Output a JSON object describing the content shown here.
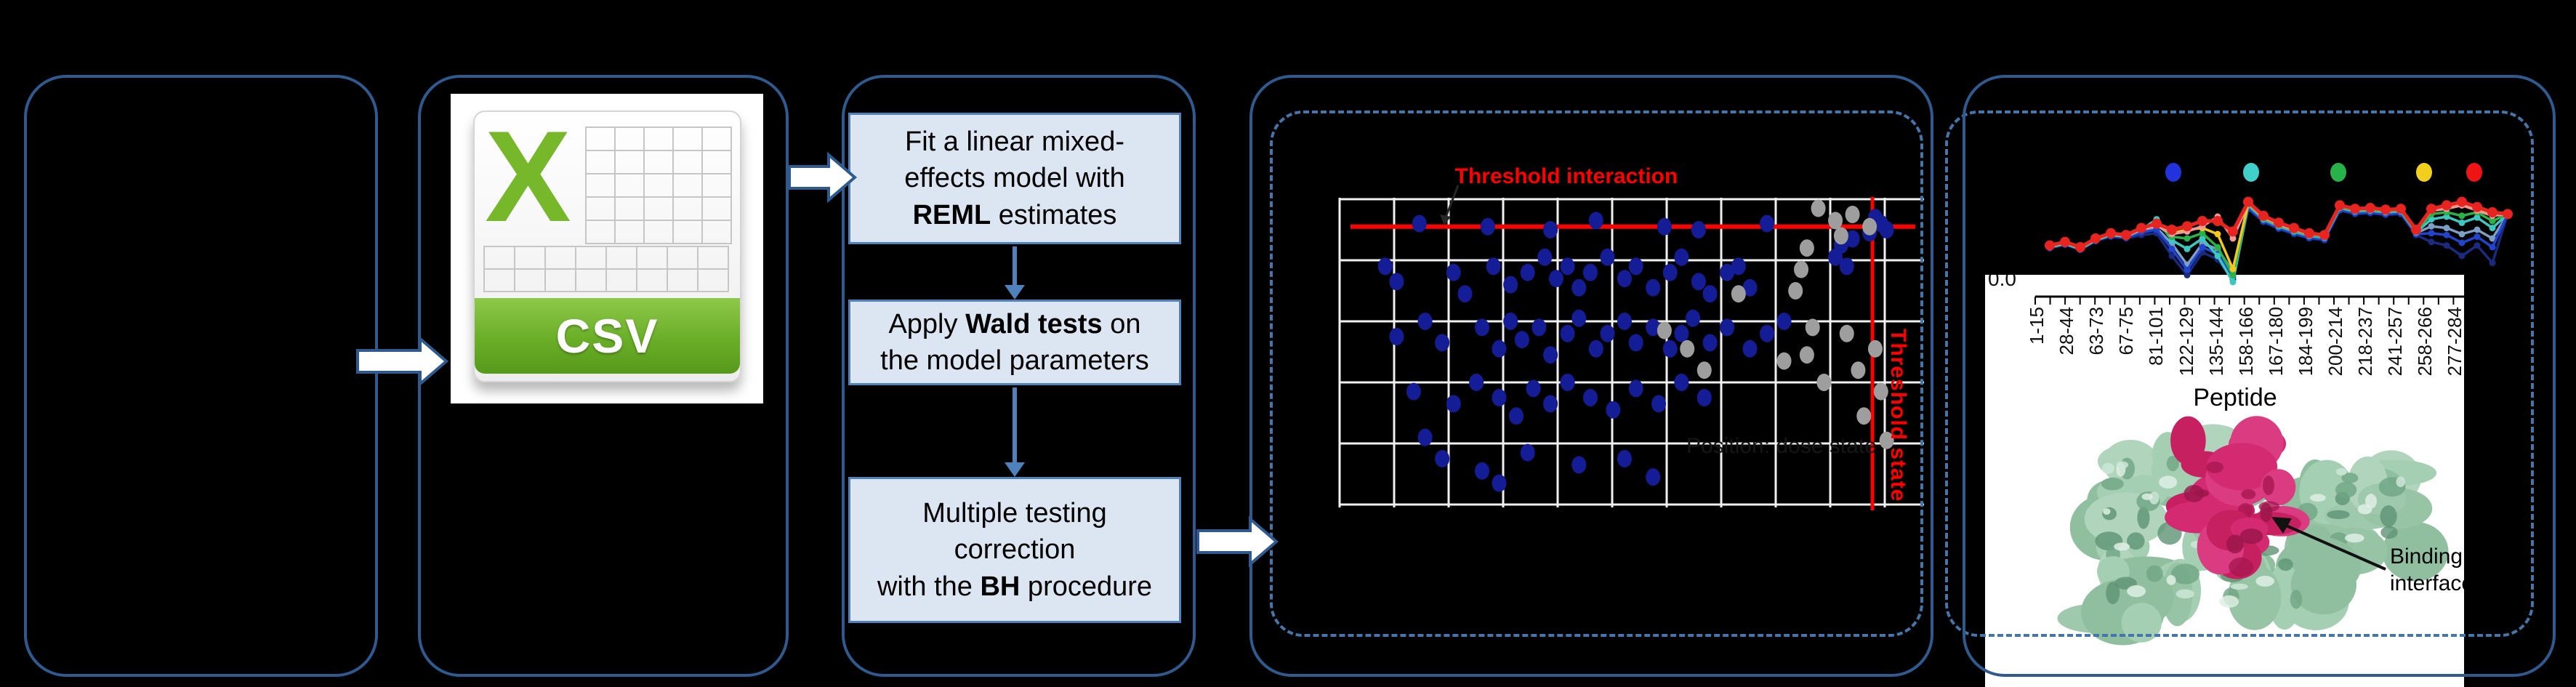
{
  "colors": {
    "background": "#000000",
    "panel_border": "#2e5a8f",
    "dashed_border": "#4576ab",
    "step_fill": "#dce6f2",
    "step_border": "#4f81bd",
    "threshold_red": "#ff0000",
    "scatter_blue": "#141c96",
    "scatter_gray": "#9e9e9e",
    "grid_white": "#f0f0f0",
    "csv_green": "#76b82a",
    "protein_green": [
      "#9fc9ad",
      "#8fbf9f",
      "#b0d5bc",
      "#a5cfb3",
      "#97c4a5"
    ],
    "protein_green_dark": [
      "#6fa583",
      "#5e9374"
    ],
    "protein_green_light": [
      "#cde6d6",
      "#def0e4"
    ],
    "protein_magenta": [
      "#d42a72",
      "#c72061",
      "#db3b80"
    ],
    "protein_magenta_dark": [
      "#a81850",
      "#97154a"
    ]
  },
  "panel2": {
    "excel_letter": "X",
    "badge": "CSV"
  },
  "panel3": {
    "steps": [
      {
        "name": "fit-model",
        "lines": [
          [
            {
              "t": "Fit a linear mixed-"
            }
          ],
          [
            {
              "t": "effects model with"
            }
          ],
          [
            {
              "t": "REML",
              "b": true
            },
            {
              "t": " estimates"
            }
          ]
        ]
      },
      {
        "name": "wald-tests",
        "lines": [
          [
            {
              "t": "Apply "
            },
            {
              "t": "Wald tests",
              "b": true
            },
            {
              "t": " on"
            }
          ],
          [
            {
              "t": "the model parameters"
            }
          ]
        ]
      },
      {
        "name": "multiple-testing",
        "lines": [
          [
            {
              "t": "Multiple testing"
            }
          ],
          [
            {
              "t": "correction"
            }
          ],
          [
            {
              "t": "with the "
            },
            {
              "t": "BH",
              "b": true
            },
            {
              "t": " procedure"
            }
          ]
        ]
      }
    ]
  },
  "panel4": {
    "title": "Threshold interaction",
    "vline_label": "Threshold state",
    "faint_xlabel": "Position: dose state"
  },
  "panel5": {
    "y_tick": "0.0",
    "x_title": "Peptide",
    "annotation_lines": [
      "Binding",
      "interface"
    ]
  },
  "chart_data": [
    {
      "id": "threshold-scatter",
      "type": "scatter",
      "title": "Threshold interaction",
      "grid": {
        "cols": 11,
        "rows": 6,
        "on": true
      },
      "thresholds": {
        "interaction_y_frac": 0.09,
        "state_x_frac": 0.935,
        "color": "#ff0000"
      },
      "series": [
        {
          "name": "significant-interaction",
          "color": "#141c96",
          "points": [
            [
              14,
              8
            ],
            [
              26,
              9
            ],
            [
              37,
              10
            ],
            [
              45,
              7
            ],
            [
              57,
              9
            ],
            [
              63,
              10
            ],
            [
              75,
              8
            ],
            [
              94,
              6
            ],
            [
              95,
              8
            ],
            [
              96,
              10
            ],
            [
              93,
              11
            ],
            [
              90,
              13
            ],
            [
              88,
              15
            ],
            [
              87,
              19
            ],
            [
              89,
              22
            ],
            [
              8,
              22
            ],
            [
              10,
              27
            ],
            [
              20,
              24
            ],
            [
              22,
              31
            ],
            [
              27,
              22
            ],
            [
              30,
              28
            ],
            [
              33,
              24
            ],
            [
              36,
              19
            ],
            [
              38,
              26
            ],
            [
              40,
              22
            ],
            [
              42,
              29
            ],
            [
              44,
              24
            ],
            [
              47,
              19
            ],
            [
              50,
              26
            ],
            [
              52,
              22
            ],
            [
              55,
              29
            ],
            [
              58,
              24
            ],
            [
              60,
              19
            ],
            [
              63,
              27
            ],
            [
              65,
              31
            ],
            [
              68,
              24
            ],
            [
              70,
              22
            ],
            [
              72,
              29
            ],
            [
              10,
              45
            ],
            [
              15,
              40
            ],
            [
              18,
              47
            ],
            [
              25,
              42
            ],
            [
              28,
              49
            ],
            [
              30,
              40
            ],
            [
              32,
              46
            ],
            [
              35,
              42
            ],
            [
              37,
              51
            ],
            [
              40,
              44
            ],
            [
              42,
              39
            ],
            [
              45,
              49
            ],
            [
              47,
              44
            ],
            [
              50,
              40
            ],
            [
              52,
              47
            ],
            [
              55,
              42
            ],
            [
              58,
              49
            ],
            [
              60,
              44
            ],
            [
              62,
              39
            ],
            [
              65,
              47
            ],
            [
              68,
              42
            ],
            [
              72,
              49
            ],
            [
              75,
              44
            ],
            [
              78,
              40
            ],
            [
              13,
              63
            ],
            [
              20,
              67
            ],
            [
              24,
              60
            ],
            [
              28,
              65
            ],
            [
              31,
              71
            ],
            [
              34,
              62
            ],
            [
              37,
              67
            ],
            [
              40,
              60
            ],
            [
              44,
              65
            ],
            [
              48,
              69
            ],
            [
              52,
              62
            ],
            [
              56,
              67
            ],
            [
              60,
              60
            ],
            [
              64,
              65
            ],
            [
              18,
              85
            ],
            [
              25,
              89
            ],
            [
              33,
              83
            ],
            [
              42,
              87
            ],
            [
              50,
              85
            ],
            [
              55,
              91
            ],
            [
              28,
              93
            ],
            [
              15,
              78
            ]
          ]
        },
        {
          "name": "not-significant",
          "color": "#9e9e9e",
          "points": [
            [
              84,
              3
            ],
            [
              87,
              7
            ],
            [
              90,
              5
            ],
            [
              93,
              9
            ],
            [
              88,
              12
            ],
            [
              82,
              16
            ],
            [
              81,
              23
            ],
            [
              80,
              30
            ],
            [
              83,
              42
            ],
            [
              82,
              51
            ],
            [
              89,
              44
            ],
            [
              94,
              49
            ],
            [
              91,
              56
            ],
            [
              95,
              63
            ],
            [
              92,
              71
            ],
            [
              96,
              79
            ],
            [
              85,
              60
            ],
            [
              57,
              43
            ],
            [
              61,
              49
            ],
            [
              64,
              56
            ],
            [
              78,
              53
            ],
            [
              70,
              31
            ]
          ]
        }
      ]
    },
    {
      "id": "peptide-profiles",
      "type": "line",
      "x_points": 31,
      "legend": {
        "colors": [
          "#2233dd",
          "#3fd0cc",
          "#27b34a",
          "#f2cf1d",
          "#ee1414"
        ],
        "position": "top"
      },
      "series": [
        {
          "name": "steel",
          "color": "#7d9fc4",
          "values": [
            60,
            56,
            62,
            52,
            46,
            48,
            42,
            38,
            56,
            80,
            56,
            62,
            88,
            14,
            29,
            37,
            43,
            48,
            50,
            16,
            20,
            19,
            21,
            20,
            44,
            36,
            38,
            45,
            40,
            50,
            22
          ]
        },
        {
          "name": "navy",
          "color": "#1a2a80",
          "values": [
            61,
            57,
            63,
            53,
            48,
            50,
            46,
            44,
            70,
            92,
            66,
            74,
            97,
            16,
            31,
            39,
            45,
            50,
            52,
            18,
            22,
            21,
            23,
            22,
            46,
            54,
            58,
            70,
            58,
            78,
            22
          ]
        },
        {
          "name": "blue",
          "color": "#2144cf",
          "values": [
            61,
            57,
            63,
            53,
            47,
            49,
            43,
            40,
            62,
            86,
            60,
            68,
            94,
            15,
            30,
            38,
            44,
            49,
            51,
            17,
            21,
            20,
            22,
            21,
            45,
            44,
            46,
            55,
            48,
            60,
            22
          ]
        },
        {
          "name": "teal",
          "color": "#3cc8c0",
          "values": [
            60,
            56,
            62,
            52,
            46,
            48,
            40,
            28,
            52,
            62,
            50,
            70,
            100,
            12,
            28,
            36,
            42,
            47,
            49,
            15,
            19,
            18,
            20,
            19,
            43,
            28,
            25,
            32,
            26,
            38,
            22
          ]
        },
        {
          "name": "green",
          "color": "#2ab148",
          "values": [
            59,
            55,
            61,
            51,
            45,
            47,
            39,
            34,
            48,
            50,
            44,
            60,
            92,
            11,
            27,
            35,
            41,
            46,
            48,
            14,
            18,
            17,
            19,
            18,
            42,
            22,
            20,
            24,
            20,
            30,
            22
          ]
        },
        {
          "name": "gold",
          "color": "#f4c71c",
          "values": [
            59,
            55,
            61,
            51,
            45,
            47,
            39,
            34,
            44,
            40,
            38,
            45,
            85,
            10,
            26,
            34,
            40,
            45,
            47,
            13,
            17,
            16,
            18,
            17,
            41,
            16,
            13,
            9,
            15,
            22,
            22
          ]
        },
        {
          "name": "salmon",
          "color": "#f09a9a",
          "values": [
            58,
            54,
            60,
            50,
            45,
            47,
            40,
            35,
            45,
            42,
            36,
            25,
            50,
            10,
            26,
            34,
            40,
            45,
            47,
            13,
            17,
            16,
            18,
            17,
            41,
            18,
            16,
            12,
            18,
            24,
            22
          ]
        },
        {
          "name": "red",
          "color": "#e82420",
          "values": [
            58,
            54,
            60,
            50,
            44,
            46,
            38,
            33,
            40,
            36,
            30,
            30,
            42,
            8,
            24,
            32,
            38,
            44,
            46,
            12,
            16,
            15,
            17,
            16,
            40,
            16,
            12,
            8,
            14,
            20,
            22
          ]
        }
      ],
      "x_axis": {
        "y_tick": "0.0",
        "minor_ticks": 30,
        "labels": [
          "1-15",
          "28-44",
          "63-73",
          "67-75",
          "81-101",
          "122-129",
          "135-144",
          "158-166",
          "167-180",
          "184-199",
          "200-214",
          "218-237",
          "241-257",
          "258-266",
          "277-284"
        ],
        "title": "Peptide"
      }
    }
  ]
}
